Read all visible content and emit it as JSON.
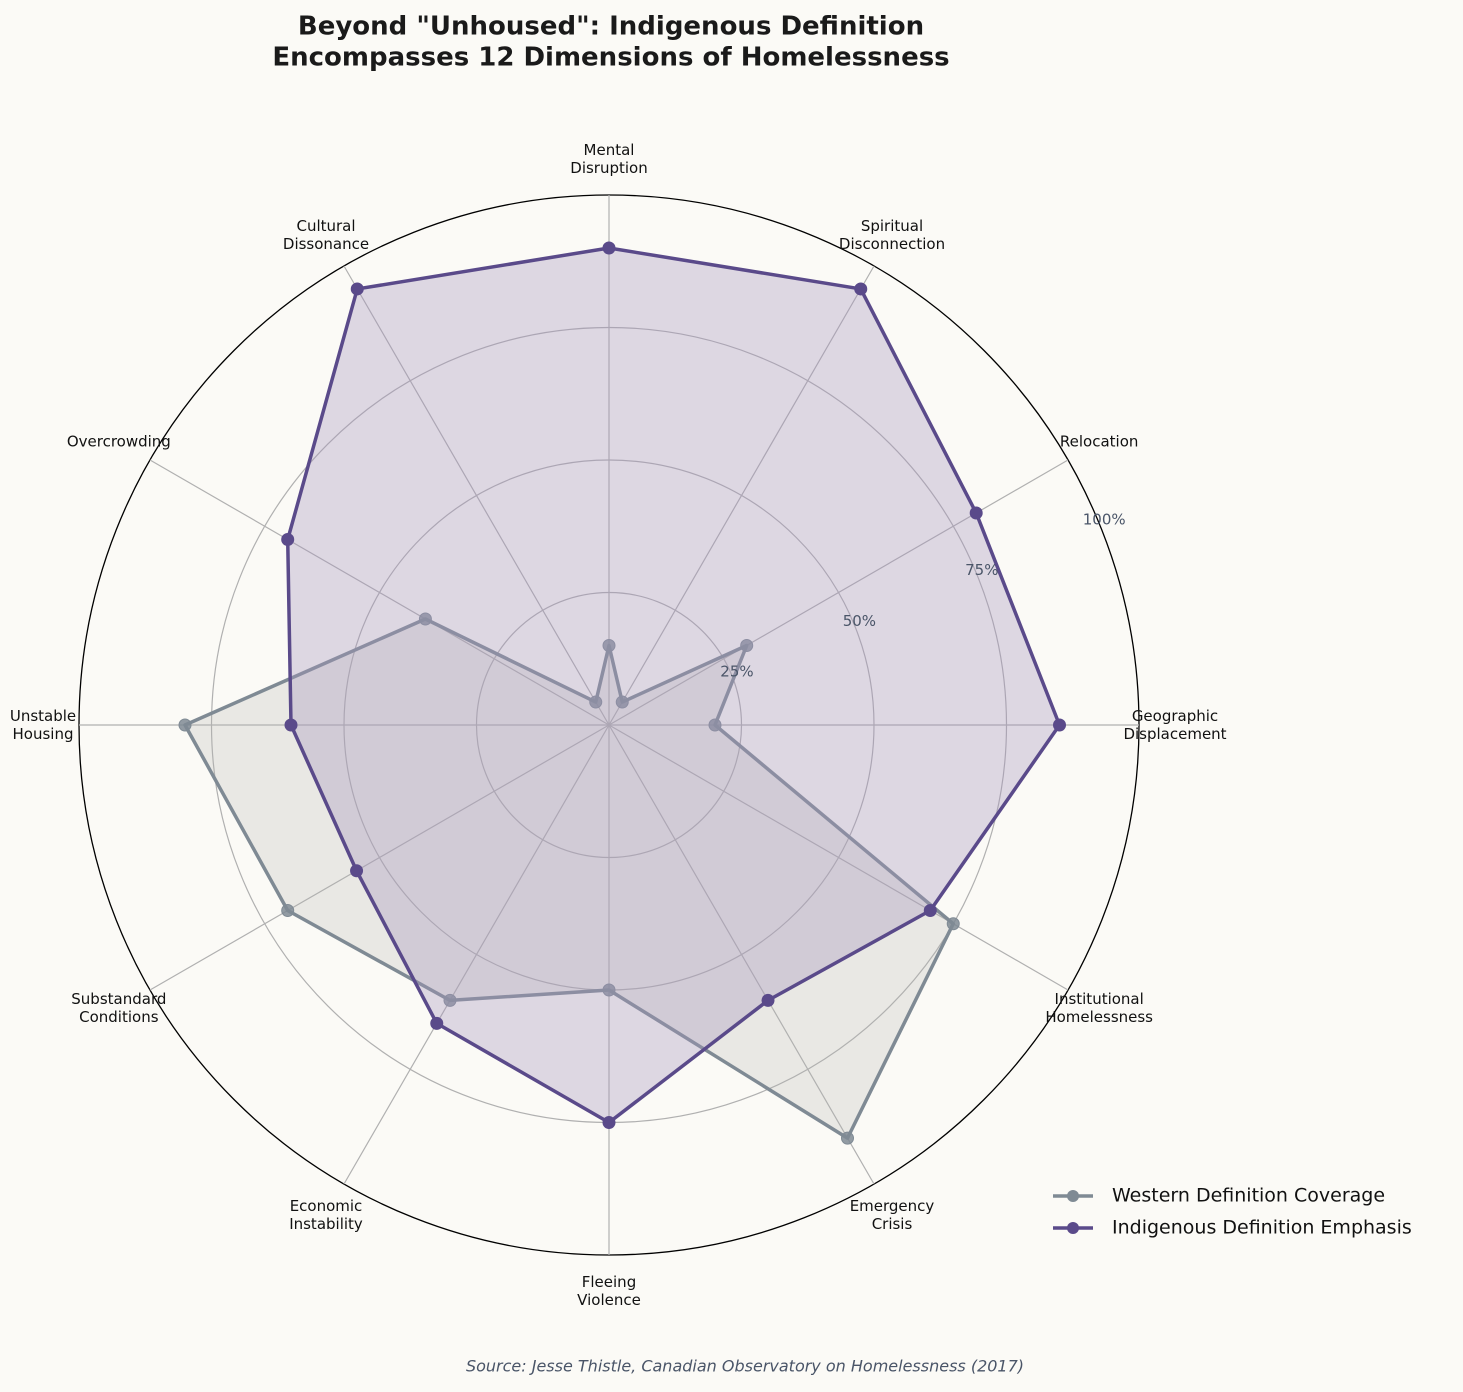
{
  "chart_data": {
    "type": "radar",
    "title": "Beyond \"Unhoused\": Indigenous Definition\nEncompasses 12 Dimensions of Homelessness",
    "categories": [
      "Geographic\nDisplacement",
      "Relocation",
      "Spiritual\nDisconnection",
      "Mental\nDisruption",
      "Cultural\nDissonance",
      "Overcrowding",
      "Unstable\nHousing",
      "Substandard\nConditions",
      "Economic\nInstability",
      "Fleeing\nViolence",
      "Emergency\nCrisis",
      "Institutional\nHomelessness"
    ],
    "series": [
      {
        "name": "Western Definition Coverage",
        "color": "#7f8a94",
        "fill": "#b5b3b0",
        "values": [
          20,
          30,
          5,
          15,
          5,
          40,
          80,
          70,
          60,
          50,
          90,
          75
        ]
      },
      {
        "name": "Indigenous Definition Emphasis",
        "color": "#5a4a8a",
        "fill": "#a694bd",
        "values": [
          85,
          80,
          95,
          90,
          95,
          70,
          60,
          55,
          65,
          75,
          60,
          70
        ]
      }
    ],
    "ylim": [
      0,
      100
    ],
    "yticks": [
      {
        "value": 25,
        "label": "25%"
      },
      {
        "value": 50,
        "label": "50%"
      },
      {
        "value": 75,
        "label": "75%"
      },
      {
        "value": 100,
        "label": "100%"
      }
    ],
    "grid": true,
    "legend": "lower right",
    "source": "Source: Jesse Thistle, Canadian Observatory on Homelessness (2017)"
  }
}
